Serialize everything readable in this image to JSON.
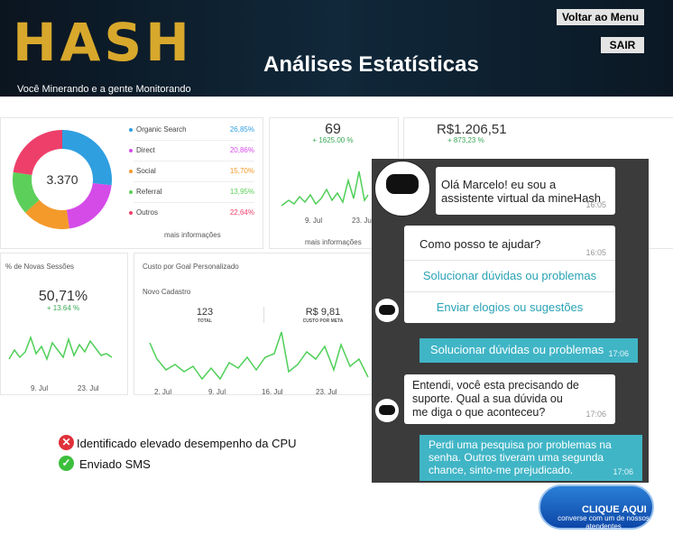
{
  "header": {
    "logo": "HASH",
    "tagline": "Você Minerando e a gente Monitorando",
    "title": "Análises Estatísticas",
    "menu_button": "Voltar ao Menu",
    "exit_button": "SAIR"
  },
  "dashboard": {
    "traffic": {
      "total": "3.370",
      "more": "mais informações",
      "sources": [
        {
          "name": "Organic Search",
          "share": {
            "value": 26.85,
            "label": "26,85%"
          },
          "color": "#2f9fe0"
        },
        {
          "name": "Direct",
          "share": {
            "value": 20.86,
            "label": "20,86%"
          },
          "color": "#d54be8"
        },
        {
          "name": "Social",
          "share": {
            "value": 15.7,
            "label": "15,70%"
          },
          "color": "#f39a2b"
        },
        {
          "name": "Referral",
          "share": {
            "value": 13.95,
            "label": "13,95%"
          },
          "color": "#5ccf5a"
        },
        {
          "name": "Outros",
          "share": {
            "value": 22.64,
            "label": "22,64%"
          },
          "color": "#ee3f6a"
        }
      ]
    },
    "sessions": {
      "value": "69",
      "change": "+ 1625.00 %",
      "x_labels": [
        "9. Jul",
        "23. Jul"
      ],
      "more": "mais informações"
    },
    "revenue": {
      "value": "R$1.206,51",
      "change": "+ 873,23 %"
    },
    "new_sessions": {
      "title": "% de Novas Sessões",
      "value": "50,71%",
      "change": "+ 13.64 %",
      "x_labels": [
        "9. Jul",
        "23. Jul"
      ]
    },
    "goal_cost": {
      "title": "Custo por Goal Personalizado",
      "goal": "Novo Cadastro",
      "total": "123",
      "total_label": "TOTAL",
      "cost": "R$ 9,81",
      "cost_label": "CUSTO POR META",
      "x_labels": [
        "2. Jul",
        "9. Jul",
        "16. Jul",
        "23. Jul"
      ]
    }
  },
  "chat": {
    "messages": [
      {
        "text": "Olá Marcelo! eu sou a assistente virtual da mineHash",
        "time": "16:05"
      },
      {
        "text": "Como posso te ajudar?",
        "time": "16:05",
        "options": [
          "Solucionar dúvidas ou problemas",
          "Enviar elogios ou sugestões"
        ]
      },
      {
        "text": "Solucionar dúvidas ou problemas",
        "time": "17:06"
      },
      {
        "text": "Entendi, você esta precisando de suporte. Qual a sua dúvida ou me diga o que aconteceu?",
        "time": "17:06"
      },
      {
        "text": "Perdi uma pesquisa por problemas na senha. Outros tiveram uma segunda chance, sinto-me prejudicado.",
        "time": "17:06"
      }
    ]
  },
  "alerts": [
    {
      "text": "Identificado elevado desempenho da CPU"
    },
    {
      "text": "Enviado SMS"
    }
  ],
  "support_button": {
    "label": "CLIQUE AQUI",
    "text": "converse com um de nossos atendentes"
  }
}
